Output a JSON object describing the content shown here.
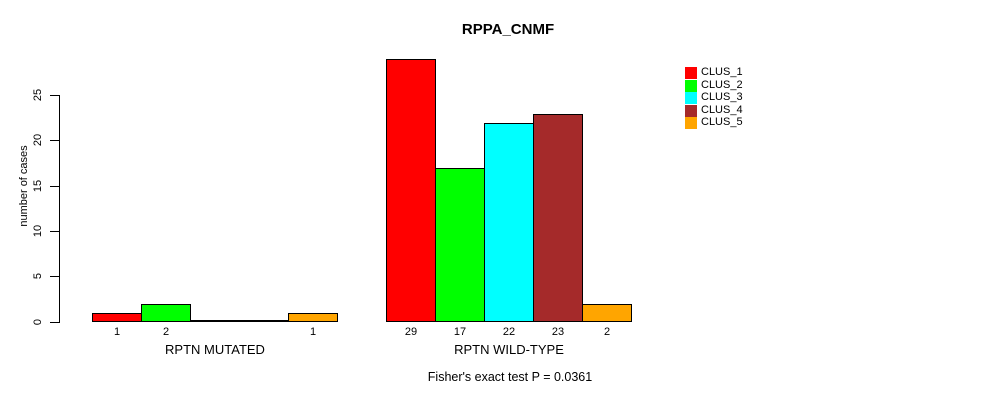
{
  "chart_data": {
    "type": "bar",
    "title": "RPPA_CNMF",
    "ylabel": "number of cases",
    "xlabel": "",
    "yticks": [
      0,
      5,
      10,
      15,
      20,
      25
    ],
    "ylim": [
      0,
      29
    ],
    "grid": false,
    "legend_position": "top-right",
    "series": [
      {
        "name": "CLUS_1",
        "color": "#FF0000"
      },
      {
        "name": "CLUS_2",
        "color": "#00FF00"
      },
      {
        "name": "CLUS_3",
        "color": "#00FFFF"
      },
      {
        "name": "CLUS_4",
        "color": "#A52A2A"
      },
      {
        "name": "CLUS_5",
        "color": "#FFA500"
      }
    ],
    "groups": [
      {
        "label": "RPTN MUTATED",
        "values": [
          1,
          2,
          0,
          0,
          1
        ],
        "bar_labels": [
          "1",
          "2",
          "",
          "",
          "1"
        ]
      },
      {
        "label": "RPTN WILD-TYPE",
        "values": [
          29,
          17,
          22,
          23,
          2
        ],
        "bar_labels": [
          "29",
          "17",
          "22",
          "23",
          "2"
        ]
      }
    ],
    "annotation": "Fisher's exact test P = 0.0361"
  }
}
